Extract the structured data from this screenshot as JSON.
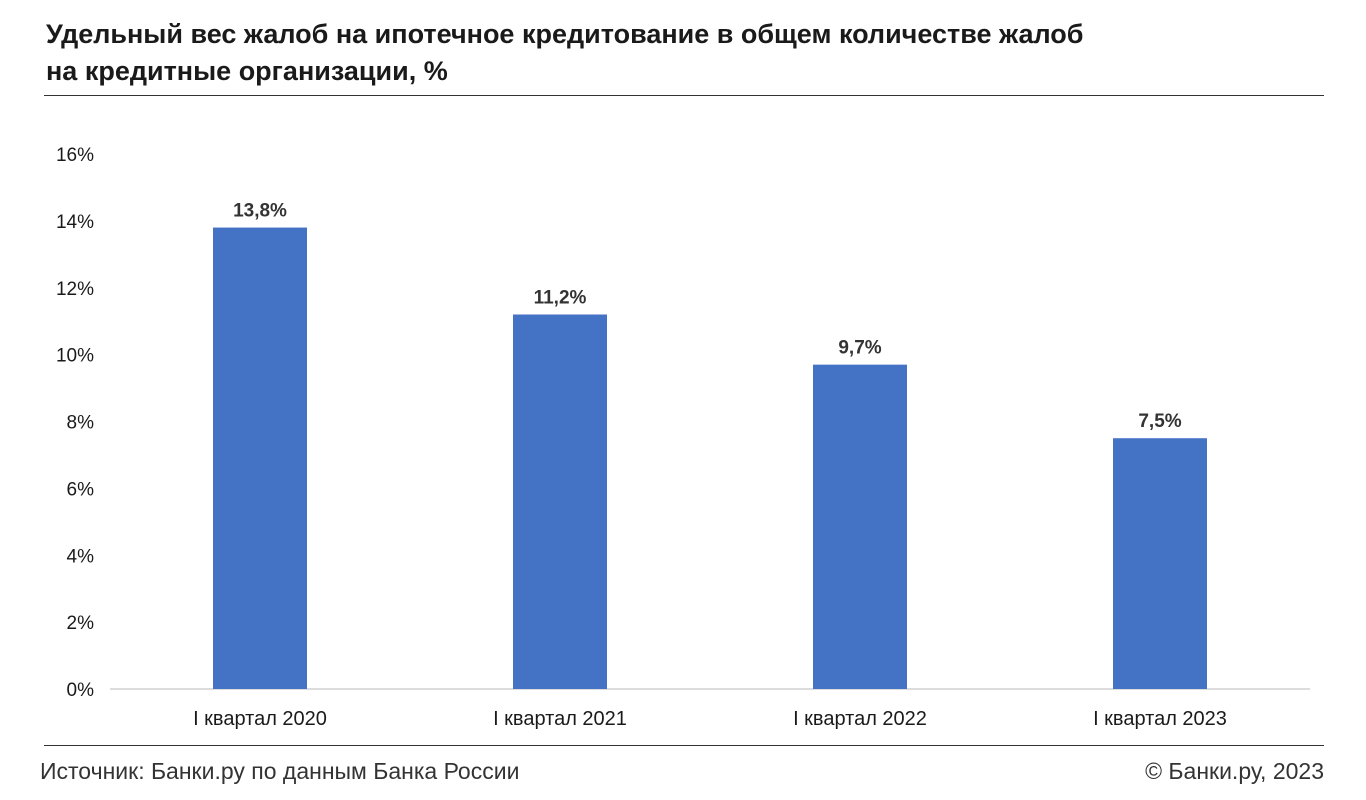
{
  "chart_data": {
    "type": "bar",
    "title": "Удельный вес жалоб на ипотечное кредитование в общем количестве жалоб на кредитные организации, %",
    "title_lines": [
      "Удельный вес жалоб на ипотечное кредитование в общем количестве жалоб",
      "на кредитные организации, %"
    ],
    "categories": [
      "I квартал 2020",
      "I квартал 2021",
      "I квартал 2022",
      "I квартал 2023"
    ],
    "values": [
      13.8,
      11.2,
      9.7,
      7.5
    ],
    "data_labels": [
      "13,8%",
      "11,2%",
      "9,7%",
      "7,5%"
    ],
    "ylim": [
      0,
      16
    ],
    "yticks": [
      0,
      2,
      4,
      6,
      8,
      10,
      12,
      14,
      16
    ],
    "ytick_labels": [
      "0%",
      "2%",
      "4%",
      "6%",
      "8%",
      "10%",
      "12%",
      "14%",
      "16%"
    ],
    "xlabel": "",
    "ylabel": "",
    "grid": false,
    "bar_color": "#4472C4"
  },
  "footer": {
    "source": "Источник: Банки.ру по данным Банка России",
    "copyright": "© Банки.ру, 2023"
  }
}
